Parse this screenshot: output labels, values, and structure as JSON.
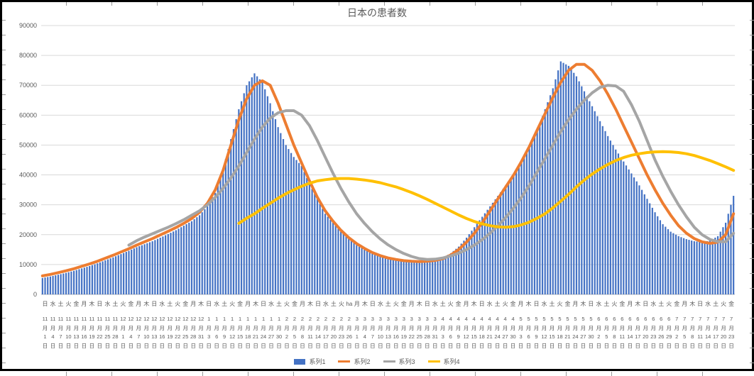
{
  "chart_data": {
    "type": "combo",
    "title": "日本の患者数",
    "legend_position": "bottom",
    "gridlines": "horizontal",
    "axis": {
      "y_min": 0,
      "y_max": 90000,
      "y_step": 10000
    },
    "x_label_units": {
      "month": "月",
      "day": "日"
    },
    "x_sampling": "category labels every 3 days; bars plotted daily",
    "anomalies": [
      "x-axis label for 2月26日 shows 'ha' instead of the weekday character"
    ],
    "categories": [
      [
        "日",
        "11",
        "1"
      ],
      [
        "水",
        "11",
        "4"
      ],
      [
        "土",
        "11",
        "7"
      ],
      [
        "火",
        "11",
        "10"
      ],
      [
        "金",
        "11",
        "13"
      ],
      [
        "月",
        "11",
        "16"
      ],
      [
        "木",
        "11",
        "19"
      ],
      [
        "日",
        "11",
        "22"
      ],
      [
        "水",
        "11",
        "25"
      ],
      [
        "土",
        "11",
        "28"
      ],
      [
        "火",
        "12",
        "1"
      ],
      [
        "金",
        "12",
        "4"
      ],
      [
        "月",
        "12",
        "7"
      ],
      [
        "木",
        "12",
        "10"
      ],
      [
        "日",
        "12",
        "13"
      ],
      [
        "水",
        "12",
        "16"
      ],
      [
        "土",
        "12",
        "19"
      ],
      [
        "火",
        "12",
        "22"
      ],
      [
        "金",
        "12",
        "25"
      ],
      [
        "月",
        "12",
        "28"
      ],
      [
        "木",
        "12",
        "31"
      ],
      [
        "日",
        "1",
        "3"
      ],
      [
        "水",
        "1",
        "6"
      ],
      [
        "土",
        "1",
        "9"
      ],
      [
        "火",
        "1",
        "12"
      ],
      [
        "金",
        "1",
        "15"
      ],
      [
        "月",
        "1",
        "18"
      ],
      [
        "木",
        "1",
        "21"
      ],
      [
        "日",
        "1",
        "24"
      ],
      [
        "水",
        "1",
        "27"
      ],
      [
        "土",
        "1",
        "30"
      ],
      [
        "火",
        "2",
        "2"
      ],
      [
        "金",
        "2",
        "5"
      ],
      [
        "月",
        "2",
        "8"
      ],
      [
        "木",
        "2",
        "11"
      ],
      [
        "日",
        "2",
        "14"
      ],
      [
        "水",
        "2",
        "17"
      ],
      [
        "土",
        "2",
        "20"
      ],
      [
        "火",
        "2",
        "23"
      ],
      [
        "ha",
        "2",
        "26"
      ],
      [
        "月",
        "3",
        "1"
      ],
      [
        "木",
        "3",
        "4"
      ],
      [
        "日",
        "3",
        "7"
      ],
      [
        "水",
        "3",
        "10"
      ],
      [
        "土",
        "3",
        "13"
      ],
      [
        "火",
        "3",
        "16"
      ],
      [
        "金",
        "3",
        "19"
      ],
      [
        "月",
        "3",
        "22"
      ],
      [
        "木",
        "3",
        "25"
      ],
      [
        "日",
        "3",
        "28"
      ],
      [
        "水",
        "3",
        "31"
      ],
      [
        "土",
        "4",
        "3"
      ],
      [
        "火",
        "4",
        "6"
      ],
      [
        "金",
        "4",
        "9"
      ],
      [
        "月",
        "4",
        "12"
      ],
      [
        "木",
        "4",
        "15"
      ],
      [
        "日",
        "4",
        "18"
      ],
      [
        "水",
        "4",
        "21"
      ],
      [
        "土",
        "4",
        "24"
      ],
      [
        "火",
        "4",
        "27"
      ],
      [
        "金",
        "4",
        "30"
      ],
      [
        "月",
        "5",
        "3"
      ],
      [
        "木",
        "5",
        "6"
      ],
      [
        "日",
        "5",
        "9"
      ],
      [
        "水",
        "5",
        "12"
      ],
      [
        "土",
        "5",
        "15"
      ],
      [
        "火",
        "5",
        "18"
      ],
      [
        "金",
        "5",
        "21"
      ],
      [
        "月",
        "5",
        "24"
      ],
      [
        "木",
        "5",
        "27"
      ],
      [
        "日",
        "5",
        "30"
      ],
      [
        "水",
        "6",
        "2"
      ],
      [
        "土",
        "6",
        "5"
      ],
      [
        "火",
        "6",
        "8"
      ],
      [
        "金",
        "6",
        "11"
      ],
      [
        "月",
        "6",
        "14"
      ],
      [
        "木",
        "6",
        "17"
      ],
      [
        "日",
        "6",
        "20"
      ],
      [
        "水",
        "6",
        "23"
      ],
      [
        "土",
        "6",
        "26"
      ],
      [
        "火",
        "6",
        "29"
      ],
      [
        "金",
        "7",
        "2"
      ],
      [
        "月",
        "7",
        "5"
      ],
      [
        "木",
        "7",
        "8"
      ],
      [
        "日",
        "7",
        "11"
      ],
      [
        "水",
        "7",
        "14"
      ],
      [
        "土",
        "7",
        "17"
      ],
      [
        "火",
        "7",
        "20"
      ],
      [
        "金",
        "7",
        "23"
      ]
    ],
    "series": [
      {
        "name": "系列1",
        "type": "bar",
        "color": "#4472C4",
        "values": [
          5500,
          6000,
          6600,
          7200,
          7900,
          8700,
          9500,
          10400,
          11400,
          12400,
          13500,
          14600,
          15800,
          16800,
          17800,
          19000,
          20200,
          21500,
          23000,
          24500,
          26500,
          29500,
          34000,
          42000,
          52000,
          62000,
          70000,
          74000,
          71000,
          64000,
          56000,
          50000,
          46000,
          43000,
          37000,
          32000,
          27000,
          24000,
          21000,
          18600,
          16500,
          15000,
          13800,
          13000,
          12300,
          11800,
          11400,
          11200,
          11000,
          11100,
          11500,
          12300,
          13800,
          16000,
          19000,
          22500,
          26000,
          29500,
          33000,
          36500,
          40000,
          44000,
          49000,
          55000,
          62000,
          69000,
          78000,
          76500,
          73000,
          68000,
          63000,
          58000,
          53000,
          48500,
          44500,
          40500,
          36500,
          32000,
          27500,
          23500,
          21000,
          19500,
          18500,
          17800,
          17500,
          18000,
          19500,
          24000,
          33000
        ]
      },
      {
        "name": "系列2",
        "type": "line",
        "color": "#ED7D31",
        "values": [
          6200,
          6700,
          7300,
          7900,
          8600,
          9400,
          10200,
          11100,
          12100,
          13100,
          14200,
          15300,
          16500,
          17600,
          18700,
          19900,
          21100,
          22400,
          23800,
          25400,
          27500,
          30500,
          35000,
          41500,
          50000,
          58500,
          65500,
          70000,
          71500,
          70000,
          64000,
          57000,
          50000,
          44000,
          38000,
          32500,
          28000,
          24500,
          21500,
          19000,
          17000,
          15400,
          14000,
          13000,
          12200,
          11700,
          11300,
          11100,
          11000,
          11100,
          11400,
          12000,
          13200,
          15000,
          17500,
          20500,
          24000,
          28000,
          32000,
          36000,
          40000,
          44500,
          49500,
          55000,
          60500,
          66000,
          71000,
          75000,
          77000,
          77000,
          75000,
          71500,
          67000,
          62000,
          56500,
          51000,
          45500,
          40000,
          35000,
          30500,
          26500,
          23000,
          20500,
          18700,
          17600,
          17100,
          17500,
          20000,
          27000
        ]
      },
      {
        "name": "系列3",
        "type": "line",
        "color": "#A5A5A5",
        "values": [
          null,
          null,
          null,
          null,
          null,
          null,
          null,
          null,
          null,
          null,
          null,
          16500,
          18000,
          19200,
          20300,
          21400,
          22500,
          23700,
          25000,
          26500,
          28000,
          30000,
          32500,
          35500,
          39000,
          43000,
          47500,
          52000,
          56000,
          59000,
          60800,
          61500,
          61500,
          60000,
          56500,
          51500,
          46000,
          40500,
          35500,
          31000,
          27000,
          23800,
          21000,
          18600,
          16600,
          15000,
          13700,
          12700,
          12000,
          11700,
          11800,
          12200,
          12900,
          13800,
          15000,
          16500,
          18300,
          20500,
          23000,
          25800,
          29000,
          32500,
          36500,
          41000,
          45500,
          50000,
          54500,
          58500,
          62000,
          65000,
          67500,
          69300,
          70000,
          69800,
          68000,
          63500,
          58000,
          51500,
          45000,
          39500,
          34500,
          30000,
          26000,
          22500,
          20000,
          18400,
          17700,
          17600,
          20500
        ]
      },
      {
        "name": "系列4",
        "type": "line",
        "color": "#FFC000",
        "values": [
          null,
          null,
          null,
          null,
          null,
          null,
          null,
          null,
          null,
          null,
          null,
          null,
          null,
          null,
          null,
          null,
          null,
          null,
          null,
          null,
          null,
          null,
          null,
          null,
          null,
          23800,
          25500,
          27000,
          28800,
          30500,
          32200,
          33700,
          35000,
          36200,
          37200,
          38000,
          38400,
          38700,
          38800,
          38800,
          38600,
          38300,
          37900,
          37400,
          36700,
          36000,
          35100,
          34100,
          33000,
          31800,
          30500,
          29200,
          27900,
          26600,
          25400,
          24400,
          23600,
          23000,
          22600,
          22500,
          22700,
          23300,
          24200,
          25500,
          27000,
          29000,
          31200,
          33500,
          36000,
          38300,
          40300,
          42000,
          43500,
          44800,
          45800,
          46600,
          47100,
          47500,
          47700,
          47800,
          47700,
          47500,
          47100,
          46500,
          45700,
          44800,
          43800,
          42700,
          41500
        ]
      }
    ]
  }
}
